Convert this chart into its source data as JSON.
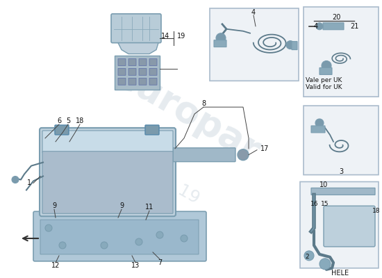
{
  "bg": "#ffffff",
  "part_fill": "#b8ccd8",
  "part_fill2": "#c8d8e4",
  "part_edge": "#7a9db0",
  "box_fill": "#eef2f6",
  "box_edge": "#aabbcc",
  "wire_color": "#5c7a8a",
  "label_color": "#111111",
  "line_color": "#444444",
  "watermark1": "europar",
  "watermark2": "r parts since 19",
  "wm_color": "#cdd8e0",
  "texts": {
    "14_19": [
      0.345,
      0.768
    ],
    "vale": "Vale per UK\nValid for UK",
    "hele": "HELE"
  }
}
